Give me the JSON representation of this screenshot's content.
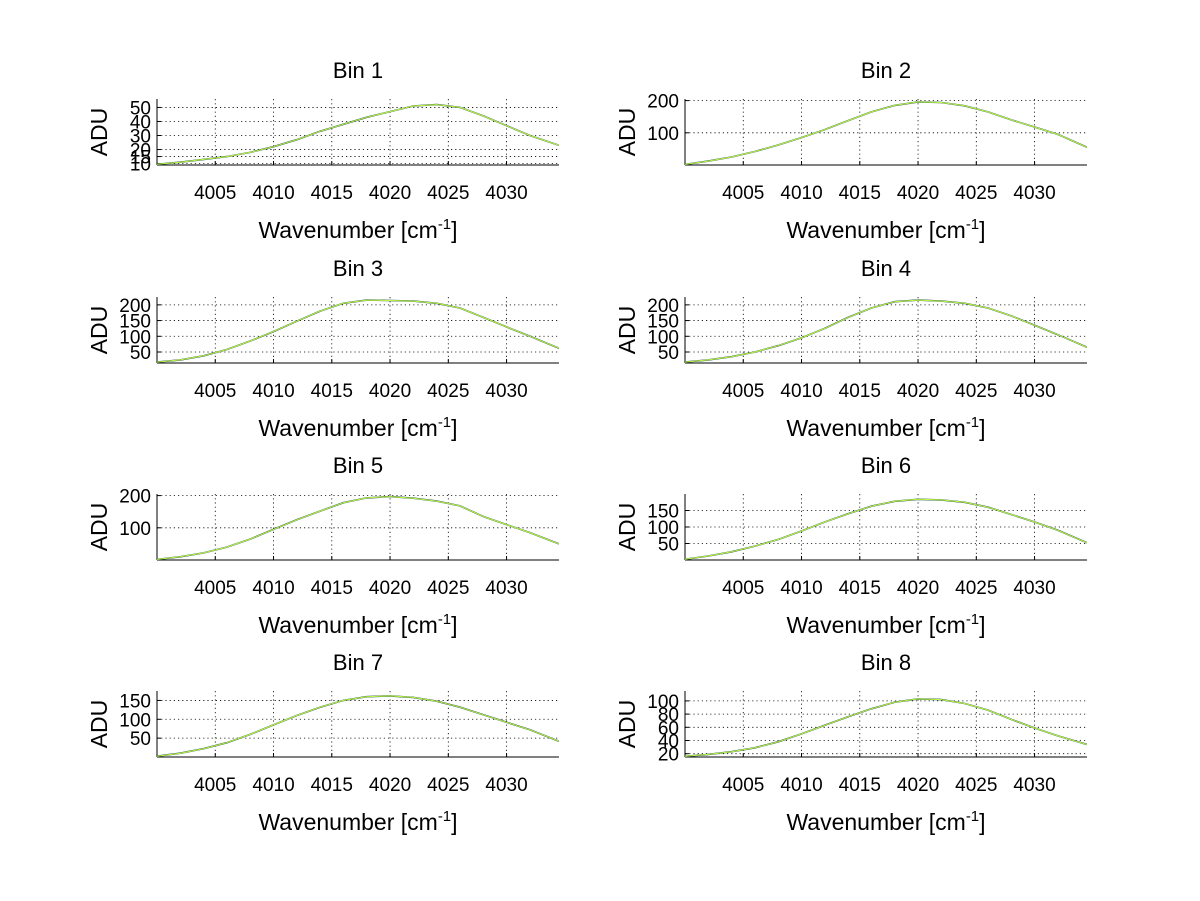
{
  "figure": {
    "xlabel": "Wavenumber [cm",
    "xlabel_sup": "-1",
    "xlabel_close": "]",
    "ylabel": "ADU"
  },
  "colors": {
    "series_dark": "#1e3f4c",
    "series_light": "#c0ff40",
    "grid": "#000000"
  },
  "chart_data": [
    {
      "type": "line",
      "title": "Bin 1",
      "xlim": [
        4000,
        4034.5
      ],
      "ylim": [
        9,
        56
      ],
      "xticks": [
        4005,
        4010,
        4015,
        4020,
        4025,
        4030
      ],
      "yticks": [
        10,
        15,
        20,
        30,
        40,
        50
      ],
      "x": [
        4000,
        4002,
        4004,
        4006,
        4008,
        4010,
        4012,
        4014,
        4016,
        4018,
        4020,
        4022,
        4024,
        4026,
        4028,
        4030,
        4032,
        4034.5
      ],
      "y": [
        9.5,
        11,
        13,
        15,
        18,
        22,
        27,
        33,
        38,
        43,
        47,
        51,
        52,
        50,
        44,
        37,
        30,
        23
      ]
    },
    {
      "type": "line",
      "title": "Bin 2",
      "xlim": [
        4000,
        4034.5
      ],
      "ylim": [
        0,
        205
      ],
      "xticks": [
        4005,
        4010,
        4015,
        4020,
        4025,
        4030
      ],
      "yticks": [
        100,
        200
      ],
      "x": [
        4000,
        4002,
        4004,
        4006,
        4008,
        4010,
        4012,
        4014,
        4016,
        4018,
        4020,
        4022,
        4024,
        4026,
        4028,
        4030,
        4032,
        4034.5
      ],
      "y": [
        2,
        12,
        25,
        42,
        62,
        85,
        110,
        138,
        165,
        185,
        196,
        194,
        184,
        165,
        140,
        118,
        95,
        55
      ]
    },
    {
      "type": "line",
      "title": "Bin 3",
      "xlim": [
        4000,
        4034.5
      ],
      "ylim": [
        15,
        225
      ],
      "xticks": [
        4005,
        4010,
        4015,
        4020,
        4025,
        4030
      ],
      "yticks": [
        50,
        100,
        150,
        200
      ],
      "x": [
        4000,
        4002,
        4004,
        4006,
        4008,
        4010,
        4012,
        4014,
        4016,
        4018,
        4020,
        4022,
        4024,
        4026,
        4028,
        4030,
        4032,
        4034.5
      ],
      "y": [
        18,
        25,
        38,
        58,
        85,
        115,
        148,
        180,
        205,
        215,
        214,
        212,
        205,
        190,
        160,
        130,
        100,
        62
      ]
    },
    {
      "type": "line",
      "title": "Bin 4",
      "xlim": [
        4000,
        4034.5
      ],
      "ylim": [
        15,
        225
      ],
      "xticks": [
        4005,
        4010,
        4015,
        4020,
        4025,
        4030
      ],
      "yticks": [
        50,
        100,
        150,
        200
      ],
      "x": [
        4000,
        4002,
        4004,
        4006,
        4008,
        4010,
        4012,
        4014,
        4016,
        4018,
        4020,
        4022,
        4024,
        4026,
        4028,
        4030,
        4032,
        4034.5
      ],
      "y": [
        18,
        25,
        35,
        50,
        70,
        95,
        125,
        160,
        190,
        210,
        215,
        212,
        205,
        190,
        165,
        135,
        105,
        65
      ]
    },
    {
      "type": "line",
      "title": "Bin 5",
      "xlim": [
        4000,
        4034.5
      ],
      "ylim": [
        0,
        205
      ],
      "xticks": [
        4005,
        4010,
        4015,
        4020,
        4025,
        4030
      ],
      "yticks": [
        100,
        200
      ],
      "x": [
        4000,
        4002,
        4004,
        4006,
        4008,
        4010,
        4012,
        4014,
        4016,
        4018,
        4020,
        4022,
        4024,
        4026,
        4028,
        4030,
        4032,
        4034.5
      ],
      "y": [
        2,
        10,
        22,
        40,
        65,
        95,
        125,
        152,
        178,
        193,
        197,
        192,
        183,
        168,
        135,
        110,
        85,
        50
      ]
    },
    {
      "type": "line",
      "title": "Bin 6",
      "xlim": [
        4000,
        4034.5
      ],
      "ylim": [
        0,
        200
      ],
      "xticks": [
        4005,
        4010,
        4015,
        4020,
        4025,
        4030
      ],
      "yticks": [
        50,
        100,
        150
      ],
      "x": [
        4000,
        4002,
        4004,
        4006,
        4008,
        4010,
        4012,
        4014,
        4016,
        4018,
        4020,
        4022,
        4024,
        4026,
        4028,
        4030,
        4032,
        4034.5
      ],
      "y": [
        2,
        12,
        25,
        42,
        62,
        88,
        115,
        140,
        163,
        178,
        184,
        182,
        175,
        160,
        138,
        115,
        90,
        52
      ]
    },
    {
      "type": "line",
      "title": "Bin 7",
      "xlim": [
        4000,
        4034.5
      ],
      "ylim": [
        0,
        175
      ],
      "xticks": [
        4005,
        4010,
        4015,
        4020,
        4025,
        4030
      ],
      "yticks": [
        50,
        100,
        150
      ],
      "x": [
        4000,
        4002,
        4004,
        4006,
        4008,
        4010,
        4012,
        4014,
        4016,
        4018,
        4020,
        4022,
        4024,
        4026,
        4028,
        4030,
        4032,
        4034.5
      ],
      "y": [
        2,
        10,
        22,
        38,
        60,
        85,
        110,
        132,
        150,
        160,
        162,
        158,
        148,
        132,
        112,
        92,
        72,
        42
      ]
    },
    {
      "type": "line",
      "title": "Bin 8",
      "xlim": [
        4000,
        4034.5
      ],
      "ylim": [
        15,
        115
      ],
      "xticks": [
        4005,
        4010,
        4015,
        4020,
        4025,
        4030
      ],
      "yticks": [
        20,
        40,
        60,
        80,
        100
      ],
      "x": [
        4000,
        4002,
        4004,
        4006,
        4008,
        4010,
        4012,
        4014,
        4016,
        4018,
        4020,
        4022,
        4024,
        4026,
        4028,
        4030,
        4032,
        4034.5
      ],
      "y": [
        16,
        19,
        23,
        29,
        38,
        50,
        63,
        76,
        88,
        98,
        103,
        102,
        96,
        86,
        72,
        59,
        47,
        34
      ]
    }
  ]
}
